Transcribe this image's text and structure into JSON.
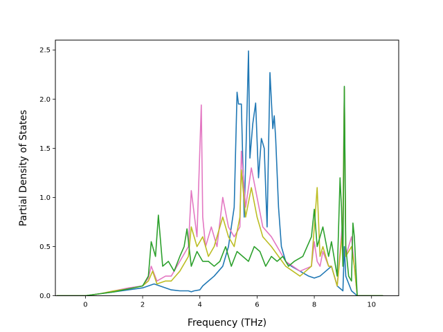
{
  "chart_data": {
    "type": "line",
    "title": "",
    "xlabel": "Frequency (THz)",
    "ylabel": "Partial Density of States",
    "xlim": [
      -1.05,
      10.95
    ],
    "ylim": [
      0,
      2.6
    ],
    "xticks": [
      0,
      2,
      4,
      6,
      8,
      10
    ],
    "yticks": [
      0.0,
      0.5,
      1.0,
      1.5,
      2.0,
      2.5
    ],
    "xtick_labels": [
      "0",
      "2",
      "4",
      "6",
      "8",
      "10"
    ],
    "ytick_labels": [
      "0.0",
      "0.5",
      "1.0",
      "1.5",
      "2.0",
      "2.5"
    ],
    "grid": false,
    "legend": "none",
    "series": [
      {
        "color": "#1f77b4",
        "x": [
          -1.0,
          0.0,
          0.5,
          1.0,
          1.5,
          2.0,
          2.2,
          2.4,
          2.6,
          3.0,
          3.3,
          3.6,
          3.7,
          3.8,
          4.0,
          4.1,
          4.3,
          4.5,
          4.8,
          5.0,
          5.2,
          5.3,
          5.35,
          5.45,
          5.55,
          5.65,
          5.7,
          5.75,
          5.85,
          5.95,
          6.05,
          6.15,
          6.25,
          6.35,
          6.45,
          6.55,
          6.6,
          6.65,
          6.75,
          6.85,
          7.0,
          7.2,
          7.5,
          7.8,
          8.0,
          8.2,
          8.4,
          8.6,
          8.8,
          9.0,
          9.05,
          9.1,
          9.3,
          9.5,
          10.4
        ],
        "values": [
          0.0,
          0.0,
          0.02,
          0.04,
          0.06,
          0.08,
          0.1,
          0.12,
          0.1,
          0.06,
          0.05,
          0.05,
          0.04,
          0.05,
          0.06,
          0.1,
          0.15,
          0.2,
          0.3,
          0.5,
          0.9,
          2.07,
          1.95,
          1.95,
          0.8,
          1.9,
          2.49,
          1.4,
          1.75,
          1.96,
          1.2,
          1.6,
          1.5,
          0.7,
          2.27,
          1.7,
          1.83,
          1.6,
          0.9,
          0.5,
          0.35,
          0.3,
          0.25,
          0.2,
          0.18,
          0.2,
          0.25,
          0.3,
          0.1,
          0.05,
          0.5,
          0.2,
          0.05,
          0.0,
          0.0
        ]
      },
      {
        "color": "#e377c2",
        "x": [
          -1.0,
          0.0,
          0.5,
          1.0,
          1.5,
          2.0,
          2.2,
          2.3,
          2.5,
          2.8,
          3.0,
          3.3,
          3.6,
          3.7,
          3.9,
          4.05,
          4.1,
          4.2,
          4.4,
          4.6,
          4.8,
          5.0,
          5.2,
          5.4,
          5.45,
          5.6,
          5.8,
          6.0,
          6.2,
          6.5,
          7.0,
          7.5,
          7.9,
          8.0,
          8.1,
          8.2,
          8.3,
          8.5,
          8.6,
          8.8,
          9.0,
          9.05,
          9.1,
          9.3,
          9.4,
          9.5,
          10.4
        ],
        "values": [
          0.0,
          0.0,
          0.02,
          0.05,
          0.08,
          0.1,
          0.18,
          0.3,
          0.15,
          0.2,
          0.2,
          0.35,
          0.5,
          1.07,
          0.6,
          1.94,
          0.8,
          0.5,
          0.7,
          0.5,
          1.0,
          0.7,
          0.6,
          0.7,
          1.47,
          0.9,
          1.3,
          1.0,
          0.7,
          0.6,
          0.35,
          0.25,
          0.3,
          0.55,
          0.35,
          0.3,
          0.45,
          0.3,
          0.3,
          0.1,
          0.8,
          2.12,
          0.4,
          0.6,
          0.3,
          0.0,
          0.0
        ]
      },
      {
        "color": "#bcbd22",
        "x": [
          -1.0,
          0.0,
          0.5,
          1.0,
          1.5,
          2.0,
          2.2,
          2.35,
          2.5,
          2.8,
          3.0,
          3.3,
          3.6,
          3.7,
          3.9,
          4.1,
          4.3,
          4.5,
          4.8,
          5.0,
          5.2,
          5.4,
          5.45,
          5.6,
          5.8,
          6.0,
          6.2,
          6.5,
          7.0,
          7.5,
          7.9,
          8.1,
          8.2,
          8.3,
          8.5,
          8.6,
          8.8,
          9.0,
          9.05,
          9.1,
          9.3,
          9.4,
          9.5,
          10.4
        ],
        "values": [
          0.0,
          0.0,
          0.02,
          0.05,
          0.07,
          0.1,
          0.15,
          0.25,
          0.12,
          0.15,
          0.15,
          0.25,
          0.4,
          0.7,
          0.5,
          0.6,
          0.4,
          0.5,
          0.8,
          0.6,
          0.5,
          0.8,
          1.28,
          0.8,
          1.1,
          0.8,
          0.6,
          0.5,
          0.3,
          0.2,
          0.3,
          1.1,
          0.4,
          0.5,
          0.3,
          0.3,
          0.1,
          0.7,
          2.1,
          0.4,
          0.5,
          0.3,
          0.0,
          0.0
        ]
      },
      {
        "color": "#2ca02c",
        "x": [
          -1.0,
          0.0,
          0.5,
          1.0,
          1.5,
          2.0,
          2.2,
          2.3,
          2.45,
          2.55,
          2.7,
          2.9,
          3.1,
          3.3,
          3.45,
          3.55,
          3.7,
          3.9,
          4.1,
          4.3,
          4.5,
          4.7,
          4.9,
          5.1,
          5.3,
          5.5,
          5.7,
          5.9,
          6.1,
          6.3,
          6.5,
          6.7,
          6.9,
          7.1,
          7.3,
          7.6,
          7.9,
          8.0,
          8.1,
          8.3,
          8.5,
          8.6,
          8.8,
          8.9,
          8.95,
          9.0,
          9.05,
          9.1,
          9.2,
          9.3,
          9.35,
          9.4,
          9.5,
          10.4
        ],
        "values": [
          0.0,
          0.0,
          0.02,
          0.04,
          0.07,
          0.1,
          0.2,
          0.55,
          0.4,
          0.82,
          0.3,
          0.35,
          0.25,
          0.4,
          0.5,
          0.68,
          0.3,
          0.45,
          0.35,
          0.35,
          0.3,
          0.35,
          0.5,
          0.3,
          0.45,
          0.4,
          0.35,
          0.5,
          0.45,
          0.3,
          0.4,
          0.35,
          0.4,
          0.3,
          0.35,
          0.4,
          0.6,
          0.88,
          0.5,
          0.7,
          0.4,
          0.55,
          0.2,
          1.2,
          0.9,
          0.3,
          2.13,
          0.5,
          0.2,
          0.15,
          0.74,
          0.6,
          0.0,
          0.0
        ]
      }
    ]
  }
}
